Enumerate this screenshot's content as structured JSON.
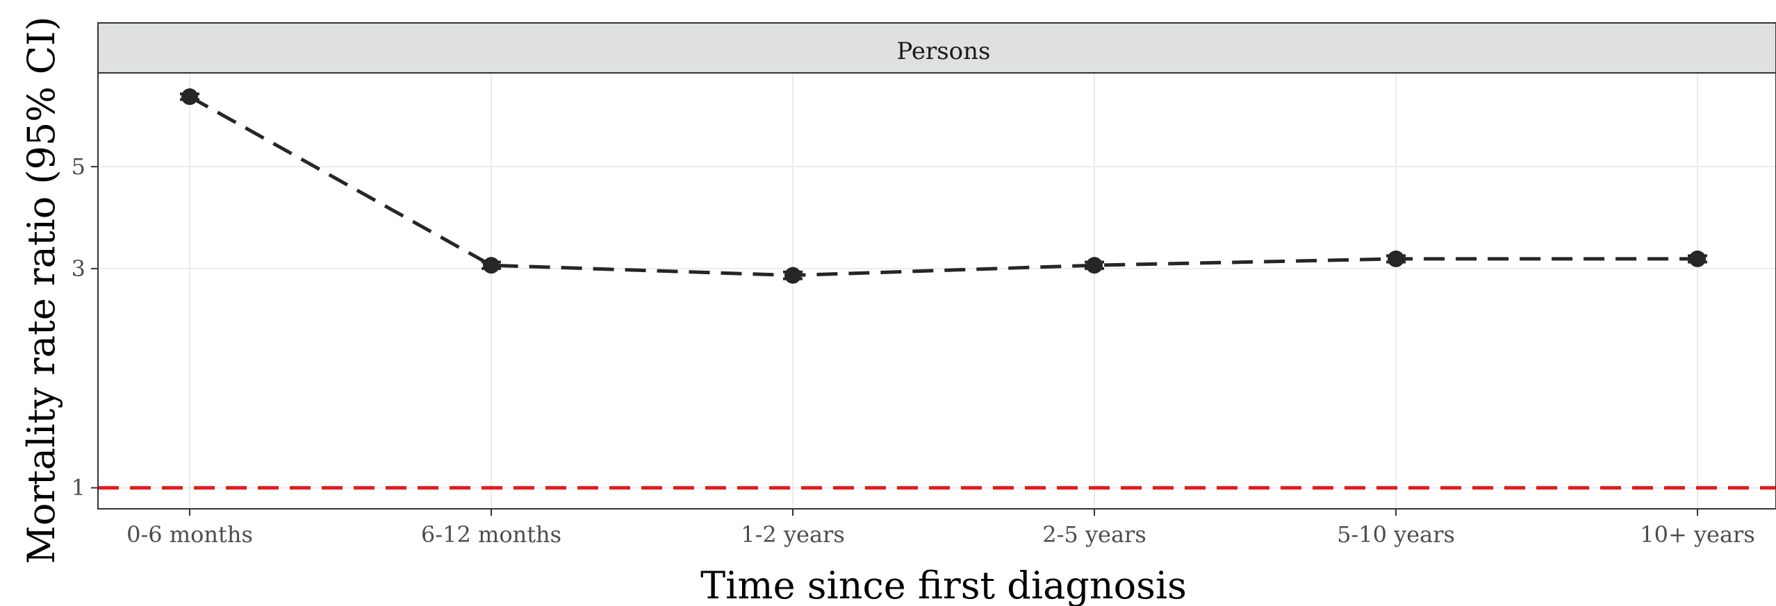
{
  "chart_data": {
    "type": "line",
    "facet_label": "Persons",
    "categories": [
      "0-6 months",
      "6-12 months",
      "1-2 years",
      "2-5 years",
      "5-10 years",
      "10+ years"
    ],
    "series": [
      {
        "values": [
          7.1,
          3.05,
          2.9,
          3.05,
          3.15,
          3.15
        ],
        "ci_low": [
          7.0,
          3.0,
          2.85,
          3.0,
          3.1,
          3.1
        ],
        "ci_high": [
          7.2,
          3.1,
          2.95,
          3.1,
          3.2,
          3.2
        ],
        "color": "#262626",
        "line_style": "dashed"
      }
    ],
    "reference_line": {
      "y": 1,
      "color": "#e41a1c",
      "line_style": "dashed"
    },
    "y_scale": "log",
    "ylim": [
      0.9,
      8.0
    ],
    "y_ticks": [
      1,
      3,
      5
    ],
    "xlabel": "Time since first diagnosis",
    "ylabel": "Mortality rate ratio (95% CI)",
    "grid": true,
    "legend": "none"
  }
}
